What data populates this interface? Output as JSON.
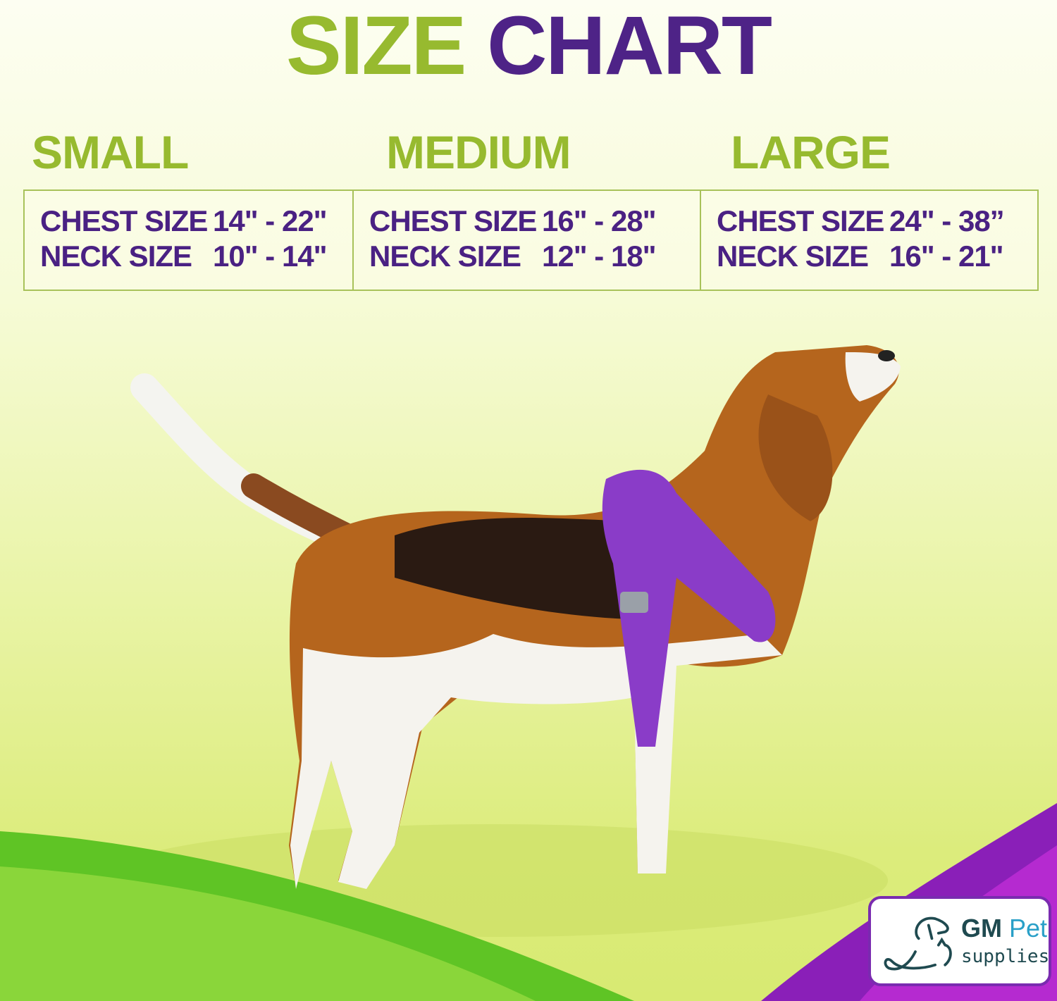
{
  "title": {
    "part1": "SIZE",
    "part2": "CHART"
  },
  "colors": {
    "green": "#97ba2f",
    "purple": "#4e2387",
    "harness": "#8a3cc8"
  },
  "sizes": [
    {
      "name": "SMALL",
      "chest_label": "CHEST SIZE",
      "chest": "14\" - 22\"",
      "neck_label": "NECK SIZE",
      "neck": "10\" - 14\""
    },
    {
      "name": "MEDIUM",
      "chest_label": "CHEST SIZE",
      "chest": "16\" - 28\"",
      "neck_label": "NECK SIZE",
      "neck": "12\" - 18\""
    },
    {
      "name": "LARGE",
      "chest_label": "CHEST SIZE",
      "chest": "24\" - 38”",
      "neck_label": "NECK SIZE",
      "neck": "16\" - 21\""
    }
  ],
  "logo": {
    "brand1": "GM",
    "brand2": "Pet",
    "brand3": "supplies"
  },
  "image": {
    "subject": "beagle-in-purple-harness"
  }
}
